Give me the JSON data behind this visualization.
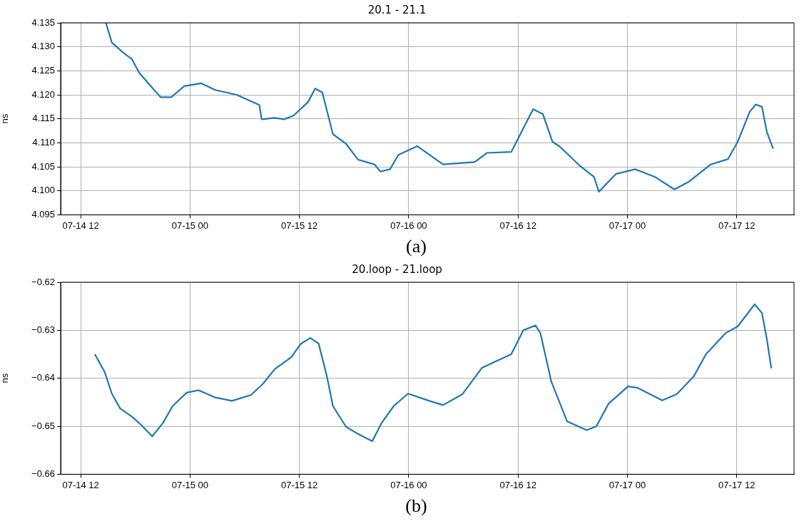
{
  "chart_data": [
    {
      "type": "line",
      "title": "20.1 - 21.1",
      "ylabel": "ns",
      "annotations": [
        "(a)"
      ],
      "grid": true,
      "marker": "none",
      "line_style": "solid",
      "legend": false,
      "xlim": [
        "--07-14T09:48",
        "--07-17T18:17"
      ],
      "xticks": [
        {
          "value": "--07-14T12:00",
          "label": "07-14 12"
        },
        {
          "value": "--07-15T00:00",
          "label": "07-15 00"
        },
        {
          "value": "--07-15T12:00",
          "label": "07-15 12"
        },
        {
          "value": "--07-16T00:00",
          "label": "07-16 00"
        },
        {
          "value": "--07-16T12:00",
          "label": "07-16 12"
        },
        {
          "value": "--07-17T00:00",
          "label": "07-17 00"
        },
        {
          "value": "--07-17T12:00",
          "label": "07-17 12"
        }
      ],
      "ylim": [
        4.095,
        4.135
      ],
      "yticks": [
        4.095,
        {
          "value": 4.1,
          "label": "4.100"
        },
        4.105,
        {
          "value": 4.11,
          "label": "4.110"
        },
        4.115,
        {
          "value": 4.12,
          "label": "4.120"
        },
        4.125,
        {
          "value": 4.13,
          "label": "4.130"
        },
        4.135
      ],
      "series": [
        {
          "color": "#1f77b4",
          "x": [
            "--07-14T14:46",
            "--07-14T15:25",
            "--07-14T16:36",
            "--07-14T17:38",
            "--07-14T18:25",
            "--07-14T19:28",
            "--07-14T20:46",
            "--07-14T21:56",
            "--07-14T23:22",
            "--07-15T01:12",
            "--07-15T02:46",
            "--07-15T05:07",
            "--07-15T07:36",
            "--07-15T07:52",
            "--07-15T09:18",
            "--07-15T10:20",
            "--07-15T11:23",
            "--07-15T12:57",
            "--07-15T13:44",
            "--07-15T14:31",
            "--07-15T15:41",
            "--07-15T17:07",
            "--07-15T18:26",
            "--07-15T20:15",
            "--07-15T20:54",
            "--07-15T21:57",
            "--07-15T22:52",
            "--07-16T00:57",
            "--07-16T03:46",
            "--07-16T07:14",
            "--07-16T08:35",
            "--07-16T11:15",
            "--07-16T13:39",
            "--07-16T14:43",
            "--07-16T15:47",
            "--07-16T16:35",
            "--07-16T18:44",
            "--07-16T20:20",
            "--07-16T20:52",
            "--07-16T22:44",
            "--07-17T00:52",
            "--07-17T03:01",
            "--07-17T05:09",
            "--07-17T06:45",
            "--07-17T09:09",
            "--07-17T11:02",
            "--07-17T12:06",
            "--07-17T13:26",
            "--07-17T14:06",
            "--07-17T14:46",
            "--07-17T15:18",
            "--07-17T15:58"
          ],
          "values": [
            4.135,
            4.1309,
            4.1289,
            4.1274,
            4.1246,
            4.1223,
            4.1195,
            4.1195,
            4.1218,
            4.1224,
            4.121,
            4.12,
            4.1179,
            4.1149,
            4.1152,
            4.1149,
            4.1157,
            4.1185,
            4.1213,
            4.1205,
            4.1118,
            4.1098,
            4.1065,
            4.1055,
            4.104,
            4.1045,
            4.1075,
            4.1093,
            4.1055,
            4.106,
            4.1079,
            4.1081,
            4.117,
            4.116,
            4.1102,
            4.1092,
            4.1053,
            4.1029,
            4.0998,
            4.1035,
            4.1045,
            4.1029,
            4.1003,
            4.1019,
            4.1055,
            4.1066,
            4.1102,
            4.1165,
            4.118,
            4.1175,
            4.1123,
            4.1089
          ]
        }
      ]
    },
    {
      "type": "line",
      "title": "20.loop - 21.loop",
      "ylabel": "ns",
      "annotations": [
        "(b)"
      ],
      "grid": true,
      "marker": "none",
      "line_style": "solid",
      "legend": false,
      "xlim": [
        "--07-14T09:48",
        "--07-17T18:17"
      ],
      "xticks": [
        {
          "value": "--07-14T12:00",
          "label": "07-14 12"
        },
        {
          "value": "--07-15T00:00",
          "label": "07-15 00"
        },
        {
          "value": "--07-15T12:00",
          "label": "07-15 12"
        },
        {
          "value": "--07-16T00:00",
          "label": "07-16 00"
        },
        {
          "value": "--07-16T12:00",
          "label": "07-16 12"
        },
        {
          "value": "--07-17T00:00",
          "label": "07-17 00"
        },
        {
          "value": "--07-17T12:00",
          "label": "07-17 12"
        }
      ],
      "ylim": [
        -0.66,
        -0.62
      ],
      "yticks": [
        {
          "value": -0.66,
          "label": "−0.66"
        },
        {
          "value": -0.65,
          "label": "−0.65"
        },
        {
          "value": -0.64,
          "label": "−0.64"
        },
        {
          "value": -0.63,
          "label": "−0.63"
        },
        {
          "value": -0.62,
          "label": "−0.62"
        }
      ],
      "series": [
        {
          "color": "#1f77b4",
          "x": [
            "--07-14T13:35",
            "--07-14T14:38",
            "--07-14T15:25",
            "--07-14T16:20",
            "--07-14T17:38",
            "--07-14T18:41",
            "--07-14T19:51",
            "--07-14T21:02",
            "--07-14T22:05",
            "--07-14T23:38",
            "--07-15T00:56",
            "--07-15T02:46",
            "--07-15T04:36",
            "--07-15T06:41",
            "--07-15T07:59",
            "--07-15T09:18",
            "--07-15T11:07",
            "--07-15T12:10",
            "--07-15T13:12",
            "--07-15T14:07",
            "--07-15T15:02",
            "--07-15T15:41",
            "--07-15T17:07",
            "--07-15T18:26",
            "--07-15T20:00",
            "--07-15T21:02",
            "--07-15T22:21",
            "--07-15T23:55",
            "--07-16T02:15",
            "--07-16T03:46",
            "--07-16T05:54",
            "--07-16T08:03",
            "--07-16T11:15",
            "--07-16T12:35",
            "--07-16T13:55",
            "--07-16T14:27",
            "--07-16T15:39",
            "--07-16T17:23",
            "--07-16T19:32",
            "--07-16T20:36",
            "--07-16T21:56",
            "--07-17T00:04",
            "--07-17T01:08",
            "--07-17T03:49",
            "--07-17T05:25",
            "--07-17T07:17",
            "--07-17T08:37",
            "--07-17T10:46",
            "--07-17T12:06",
            "--07-17T13:58",
            "--07-17T14:46",
            "--07-17T15:18",
            "--07-17T15:47"
          ],
          "values": [
            -0.6351,
            -0.6387,
            -0.6432,
            -0.6463,
            -0.648,
            -0.6498,
            -0.6521,
            -0.6493,
            -0.6458,
            -0.643,
            -0.6425,
            -0.644,
            -0.6447,
            -0.6435,
            -0.6412,
            -0.6381,
            -0.6356,
            -0.6328,
            -0.6316,
            -0.6328,
            -0.6397,
            -0.6458,
            -0.6501,
            -0.6516,
            -0.6531,
            -0.6493,
            -0.6458,
            -0.6432,
            -0.6447,
            -0.6456,
            -0.6433,
            -0.6378,
            -0.635,
            -0.63,
            -0.629,
            -0.6306,
            -0.6407,
            -0.649,
            -0.6508,
            -0.65,
            -0.6453,
            -0.6417,
            -0.642,
            -0.6446,
            -0.6433,
            -0.6396,
            -0.635,
            -0.6306,
            -0.6292,
            -0.6246,
            -0.6264,
            -0.6318,
            -0.6378
          ]
        }
      ]
    }
  ]
}
